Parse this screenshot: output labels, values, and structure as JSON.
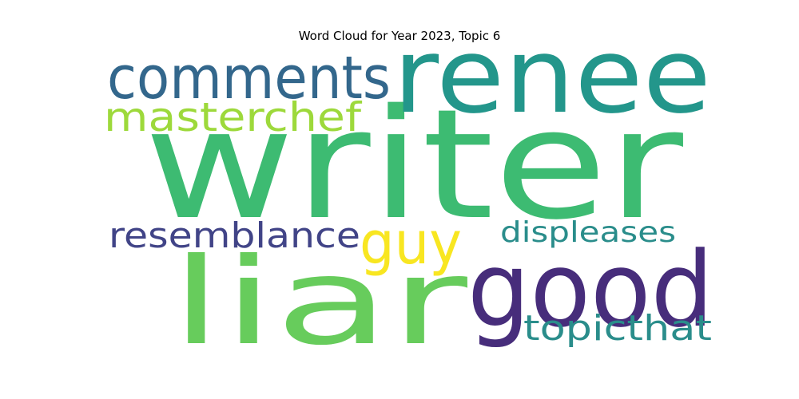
{
  "chart_data": {
    "type": "wordcloud",
    "title": "Word Cloud for Year 2023, Topic 6",
    "words": [
      {
        "text": "writer",
        "color": "#3dbb72"
      },
      {
        "text": "renee",
        "color": "#23968b"
      },
      {
        "text": "good",
        "color": "#472d7b"
      },
      {
        "text": "liar",
        "color": "#67cc5c"
      },
      {
        "text": "comments",
        "color": "#33678c"
      },
      {
        "text": "masterchef",
        "color": "#9dd93b"
      },
      {
        "text": "resemblance",
        "color": "#414487"
      },
      {
        "text": "guy",
        "color": "#f8e621"
      },
      {
        "text": "displeases",
        "color": "#2a8d8b"
      },
      {
        "text": "topicthat",
        "color": "#2a8d8b"
      }
    ]
  }
}
